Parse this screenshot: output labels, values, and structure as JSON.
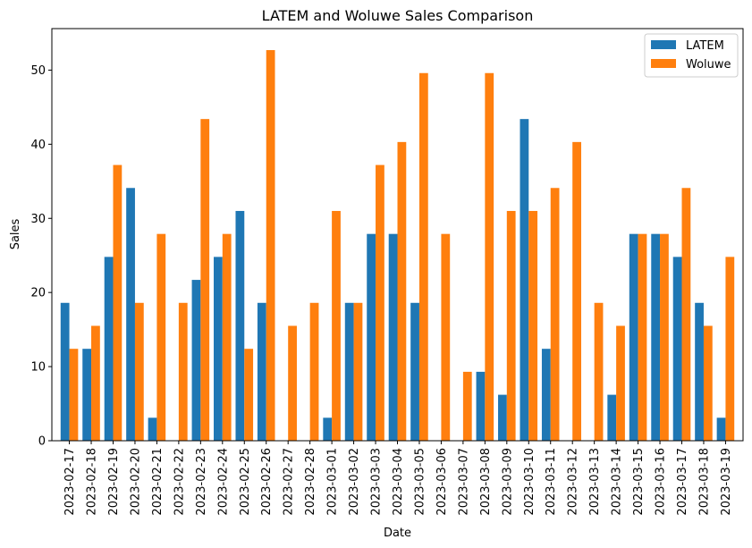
{
  "chart_data": {
    "type": "bar",
    "title": "LATEM and Woluwe Sales Comparison",
    "xlabel": "Date",
    "ylabel": "Sales",
    "ylim": [
      0,
      55.6
    ],
    "yticks": [
      0,
      10,
      20,
      30,
      40,
      50
    ],
    "grid": false,
    "legend_position": "top-right",
    "categories": [
      "2023-02-17",
      "2023-02-18",
      "2023-02-19",
      "2023-02-20",
      "2023-02-21",
      "2023-02-22",
      "2023-02-23",
      "2023-02-24",
      "2023-02-25",
      "2023-02-26",
      "2023-02-27",
      "2023-02-28",
      "2023-03-01",
      "2023-03-02",
      "2023-03-03",
      "2023-03-04",
      "2023-03-05",
      "2023-03-06",
      "2023-03-07",
      "2023-03-08",
      "2023-03-09",
      "2023-03-10",
      "2023-03-11",
      "2023-03-12",
      "2023-03-13",
      "2023-03-14",
      "2023-03-15",
      "2023-03-16",
      "2023-03-17",
      "2023-03-18",
      "2023-03-19"
    ],
    "series": [
      {
        "name": "LATEM",
        "color": "#1f77b4",
        "values": [
          18.6,
          12.4,
          24.8,
          34.1,
          3.1,
          0,
          21.7,
          24.8,
          31.0,
          18.6,
          0,
          0,
          3.1,
          18.6,
          27.9,
          27.9,
          18.6,
          0,
          0,
          9.3,
          6.2,
          43.4,
          12.4,
          0,
          0,
          6.2,
          27.9,
          27.9,
          24.8,
          18.6,
          3.1
        ]
      },
      {
        "name": "Woluwe",
        "color": "#ff7f0e",
        "values": [
          12.4,
          15.5,
          37.2,
          18.6,
          27.9,
          18.6,
          43.4,
          27.9,
          12.4,
          52.7,
          15.5,
          18.6,
          31.0,
          18.6,
          37.2,
          40.3,
          49.6,
          27.9,
          9.3,
          49.6,
          31.0,
          31.0,
          34.1,
          40.3,
          18.6,
          15.5,
          27.9,
          27.9,
          34.1,
          15.5,
          24.8
        ]
      }
    ]
  }
}
